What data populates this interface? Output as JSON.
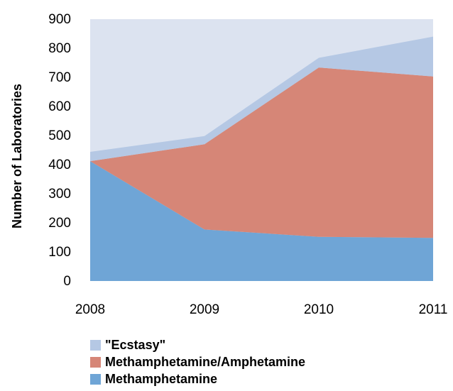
{
  "chart_data": {
    "type": "area",
    "stacked": true,
    "title": "",
    "xlabel": "",
    "ylabel": "Number of Laboratories",
    "categories": [
      "2008",
      "2009",
      "2010",
      "2011"
    ],
    "ylim": [
      0,
      900
    ],
    "yticks": [
      "0",
      "100",
      "200",
      "300",
      "400",
      "500",
      "600",
      "700",
      "800",
      "900"
    ],
    "grid": false,
    "background": "#dce3f0",
    "legend_position": "bottom",
    "series": [
      {
        "name": "Methamphetamine",
        "values": [
          412,
          177,
          152,
          148
        ],
        "color": "#6fa5d6"
      },
      {
        "name": "Methamphetamine/Amphetamine",
        "values": [
          0,
          293,
          582,
          555
        ],
        "color": "#d68677"
      },
      {
        "name": "\"Ecstasy\"",
        "values": [
          32,
          28,
          33,
          137
        ],
        "color": "#b5c8e4"
      }
    ]
  }
}
